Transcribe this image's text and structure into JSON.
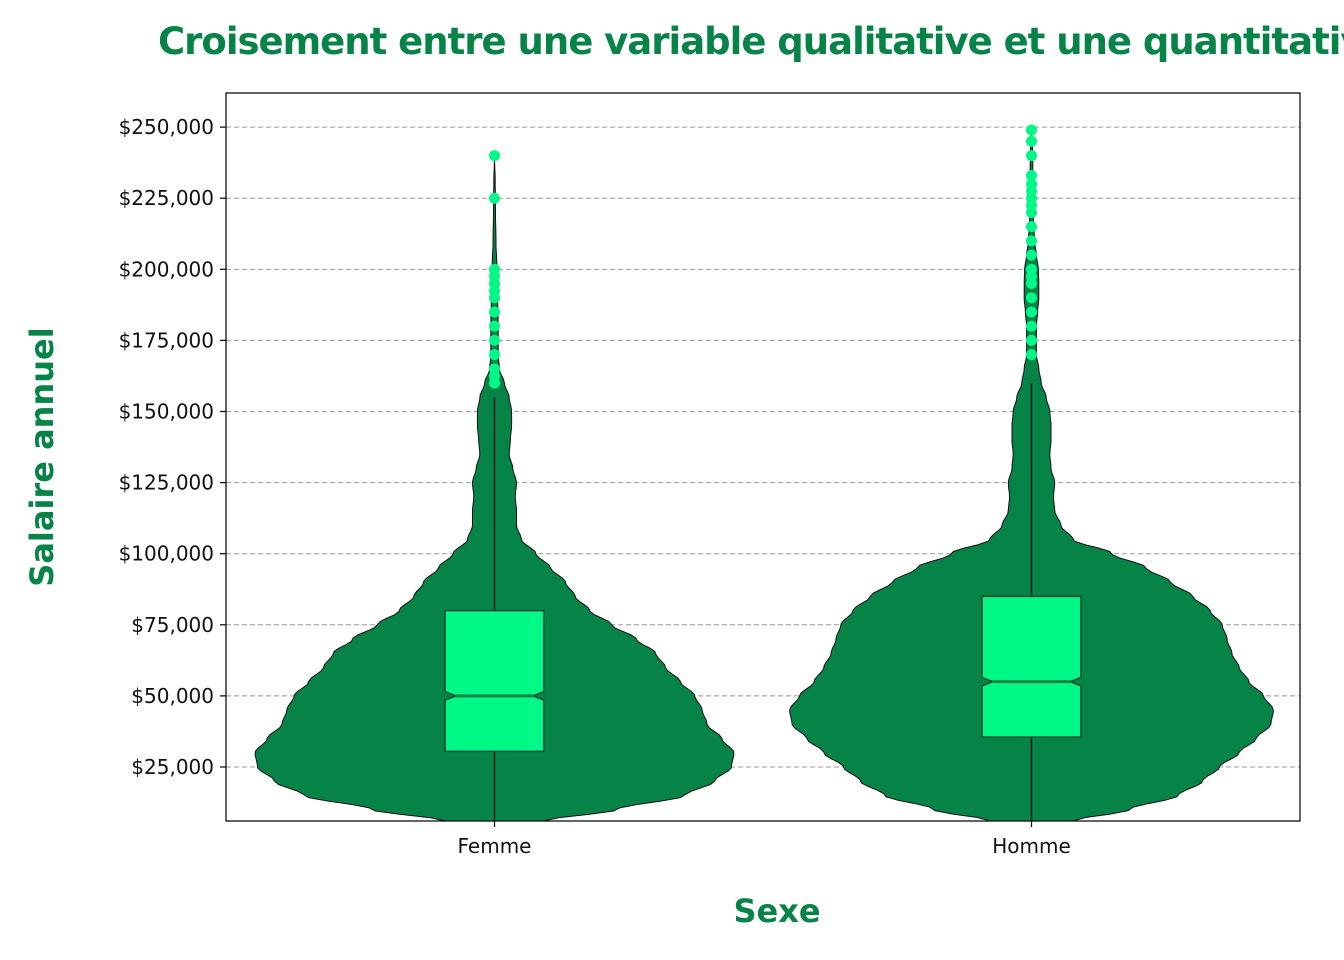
{
  "chart_data": {
    "type": "violin",
    "title": "Croisement entre une variable qualitative et une quantitative",
    "xlabel": "Sexe",
    "ylabel": "Salaire annuel",
    "categories": [
      "Femme",
      "Homme"
    ],
    "ylim": [
      6000,
      262000
    ],
    "yticks": [
      25000,
      50000,
      75000,
      100000,
      125000,
      150000,
      175000,
      200000,
      225000,
      250000
    ],
    "ytick_labels": [
      "$25,000",
      "$50,000",
      "$75,000",
      "$100,000",
      "$125,000",
      "$150,000",
      "$175,000",
      "$200,000",
      "$225,000",
      "$250,000"
    ],
    "grid": true,
    "colors": {
      "violin_fill": "#068448",
      "box_fill": "#00f986",
      "outlier": "#00f986",
      "title": "#068448",
      "grid": "#999999"
    },
    "violins": [
      {
        "category": "Femme",
        "density_profile": [
          [
            6000,
            0.2
          ],
          [
            10000,
            0.5
          ],
          [
            15000,
            0.78
          ],
          [
            20000,
            0.9
          ],
          [
            25000,
            0.97
          ],
          [
            30000,
            0.98
          ],
          [
            35000,
            0.93
          ],
          [
            40000,
            0.87
          ],
          [
            45000,
            0.85
          ],
          [
            50000,
            0.82
          ],
          [
            55000,
            0.76
          ],
          [
            60000,
            0.7
          ],
          [
            65000,
            0.66
          ],
          [
            70000,
            0.58
          ],
          [
            75000,
            0.48
          ],
          [
            80000,
            0.39
          ],
          [
            85000,
            0.33
          ],
          [
            90000,
            0.29
          ],
          [
            95000,
            0.23
          ],
          [
            100000,
            0.17
          ],
          [
            105000,
            0.11
          ],
          [
            110000,
            0.09
          ],
          [
            115000,
            0.09
          ],
          [
            120000,
            0.085
          ],
          [
            125000,
            0.09
          ],
          [
            130000,
            0.075
          ],
          [
            135000,
            0.06
          ],
          [
            140000,
            0.065
          ],
          [
            145000,
            0.07
          ],
          [
            150000,
            0.07
          ],
          [
            155000,
            0.06
          ],
          [
            160000,
            0.04
          ],
          [
            165000,
            0.02
          ],
          [
            170000,
            0.015
          ],
          [
            180000,
            0.015
          ],
          [
            190000,
            0.013
          ],
          [
            200000,
            0.01
          ],
          [
            210000,
            0.006
          ],
          [
            220000,
            0.004
          ],
          [
            230000,
            0.003
          ],
          [
            240000,
            0.0
          ]
        ],
        "box": {
          "q1": 30500,
          "median": 50000,
          "q3": 80000,
          "whisker_low": 6000,
          "whisker_high": 155000,
          "notch_low": 48500,
          "notch_high": 51500
        },
        "outliers": [
          160000,
          162500,
          165000,
          170000,
          175000,
          180000,
          185000,
          190000,
          192500,
          195000,
          197500,
          200000,
          225000,
          240000
        ]
      },
      {
        "category": "Homme",
        "density_profile": [
          [
            6000,
            0.17
          ],
          [
            10000,
            0.4
          ],
          [
            15000,
            0.6
          ],
          [
            20000,
            0.7
          ],
          [
            25000,
            0.77
          ],
          [
            30000,
            0.85
          ],
          [
            35000,
            0.92
          ],
          [
            40000,
            0.98
          ],
          [
            45000,
            0.99
          ],
          [
            50000,
            0.95
          ],
          [
            55000,
            0.89
          ],
          [
            60000,
            0.85
          ],
          [
            65000,
            0.82
          ],
          [
            70000,
            0.8
          ],
          [
            75000,
            0.78
          ],
          [
            80000,
            0.73
          ],
          [
            85000,
            0.66
          ],
          [
            90000,
            0.57
          ],
          [
            95000,
            0.47
          ],
          [
            100000,
            0.33
          ],
          [
            105000,
            0.17
          ],
          [
            110000,
            0.12
          ],
          [
            115000,
            0.095
          ],
          [
            120000,
            0.09
          ],
          [
            125000,
            0.095
          ],
          [
            130000,
            0.08
          ],
          [
            135000,
            0.075
          ],
          [
            140000,
            0.08
          ],
          [
            145000,
            0.08
          ],
          [
            150000,
            0.075
          ],
          [
            155000,
            0.06
          ],
          [
            160000,
            0.04
          ],
          [
            165000,
            0.03
          ],
          [
            170000,
            0.02
          ],
          [
            175000,
            0.02
          ],
          [
            180000,
            0.02
          ],
          [
            185000,
            0.025
          ],
          [
            190000,
            0.03
          ],
          [
            195000,
            0.03
          ],
          [
            200000,
            0.028
          ],
          [
            205000,
            0.02
          ],
          [
            210000,
            0.012
          ],
          [
            220000,
            0.007
          ],
          [
            230000,
            0.006
          ],
          [
            240000,
            0.005
          ],
          [
            249000,
            0.0
          ]
        ],
        "box": {
          "q1": 35500,
          "median": 55000,
          "q3": 85000,
          "whisker_low": 6000,
          "whisker_high": 160000,
          "notch_low": 53500,
          "notch_high": 56500
        },
        "outliers": [
          170000,
          175000,
          180000,
          185000,
          190000,
          195000,
          197500,
          200000,
          205000,
          210000,
          215000,
          220000,
          222500,
          225000,
          227500,
          230000,
          233000,
          240000,
          245000,
          249000
        ]
      }
    ]
  }
}
